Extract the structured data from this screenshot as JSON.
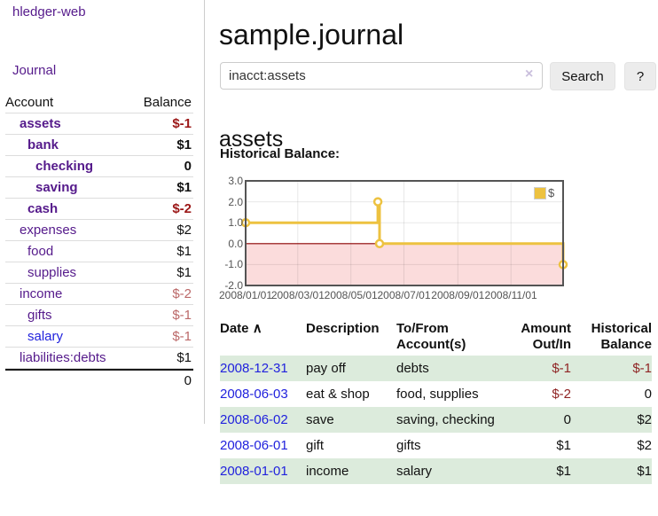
{
  "sidebar": {
    "app_title": "hledger-web",
    "journal_link": "Journal",
    "accounts_table": {
      "headers": {
        "account": "Account",
        "balance": "Balance"
      },
      "rows": [
        {
          "name": "assets",
          "depth": 1,
          "bold": true,
          "link_color": "purple",
          "balance": "$-1",
          "balance_style": "neg-strong"
        },
        {
          "name": "bank",
          "depth": 2,
          "bold": true,
          "link_color": "purple",
          "balance": "$1",
          "balance_style": "pos"
        },
        {
          "name": "checking",
          "depth": 3,
          "bold": true,
          "link_color": "purple",
          "balance": "0",
          "balance_style": "pos"
        },
        {
          "name": "saving",
          "depth": 3,
          "bold": true,
          "link_color": "purple",
          "balance": "$1",
          "balance_style": "pos"
        },
        {
          "name": "cash",
          "depth": 2,
          "bold": true,
          "link_color": "purple",
          "balance": "$-2",
          "balance_style": "neg-strong"
        },
        {
          "name": "expenses",
          "depth": 1,
          "bold": false,
          "link_color": "purple",
          "balance": "$2",
          "balance_style": "pos"
        },
        {
          "name": "food",
          "depth": 2,
          "bold": false,
          "link_color": "purple",
          "balance": "$1",
          "balance_style": "pos"
        },
        {
          "name": "supplies",
          "depth": 2,
          "bold": false,
          "link_color": "purple",
          "balance": "$1",
          "balance_style": "pos"
        },
        {
          "name": "income",
          "depth": 1,
          "bold": false,
          "link_color": "purple",
          "balance": "$-2",
          "balance_style": "neg-soft"
        },
        {
          "name": "gifts",
          "depth": 2,
          "bold": false,
          "link_color": "purple",
          "balance": "$-1",
          "balance_style": "neg-soft"
        },
        {
          "name": "salary",
          "depth": 2,
          "bold": false,
          "link_color": "blue",
          "balance": "$-1",
          "balance_style": "neg-soft"
        },
        {
          "name": "liabilities:debts",
          "depth": 1,
          "bold": false,
          "link_color": "purple",
          "balance": "$1",
          "balance_style": "pos"
        }
      ],
      "total": "0"
    }
  },
  "header": {
    "title": "sample.journal"
  },
  "search": {
    "query": "inacct:assets",
    "clear_icon": "×",
    "search_button": "Search",
    "help_button": "?"
  },
  "account_page": {
    "heading": "assets",
    "chart_title": "Historical Balance:"
  },
  "chart_data": {
    "type": "line",
    "step": true,
    "title": "Historical Balance",
    "series": [
      {
        "name": "$",
        "color": "#edc240",
        "points": [
          [
            "2008-01-01",
            1
          ],
          [
            "2008-06-01",
            2
          ],
          [
            "2008-06-03",
            0
          ],
          [
            "2008-12-31",
            -1
          ]
        ]
      }
    ],
    "x_range": [
      "2008-01-01",
      "2008-12-31"
    ],
    "x_ticks": [
      "2008/01/01",
      "2008/03/01",
      "2008/05/01",
      "2008/07/01",
      "2008/09/01",
      "2008/11/01"
    ],
    "y_ticks": [
      3.0,
      2.0,
      1.0,
      0.0,
      -1.0,
      -2.0
    ],
    "ylim": [
      -2.0,
      3.0
    ],
    "grid": true,
    "negative_region_color": "#fbdcdc",
    "zero_line_color": "#8b0000",
    "border_color": "#545454",
    "legend_position": "top-right",
    "legend_label": "$"
  },
  "register": {
    "headers": {
      "date": "Date",
      "sort_indicator": "∧",
      "description": "Description",
      "accounts": "To/From Account(s)",
      "amount": "Amount Out/In",
      "balance": "Historical Balance"
    },
    "rows": [
      {
        "date": "2008-12-31",
        "description": "pay off",
        "accounts": "debts",
        "amount": "$-1",
        "balance": "$-1"
      },
      {
        "date": "2008-06-03",
        "description": "eat & shop",
        "accounts": "food, supplies",
        "amount": "$-2",
        "balance": "0"
      },
      {
        "date": "2008-06-02",
        "description": "save",
        "accounts": "saving, checking",
        "amount": "0",
        "balance": "$2"
      },
      {
        "date": "2008-06-01",
        "description": "gift",
        "accounts": "gifts",
        "amount": "$1",
        "balance": "$2"
      },
      {
        "date": "2008-01-01",
        "description": "income",
        "accounts": "salary",
        "amount": "$1",
        "balance": "$1"
      }
    ]
  }
}
